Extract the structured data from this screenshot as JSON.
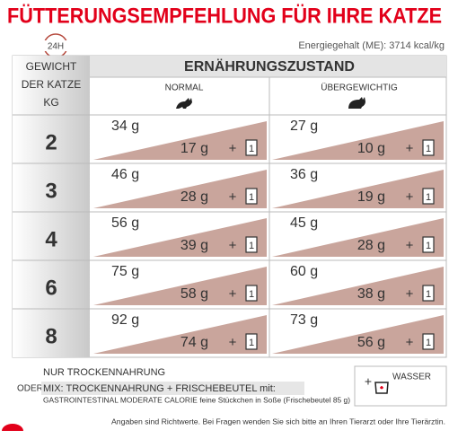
{
  "header": {
    "title": "FÜTTERUNGSEMPFEHLUNG FÜR IHRE KATZE",
    "badge": "24H",
    "energy": "Energiegehalt (ME): 3714 kcal/kg"
  },
  "table": {
    "weight_header": [
      "GEWICHT",
      "DER KATZE",
      "KG"
    ],
    "group_header": "ERNÄHRUNGSZUSTAND",
    "columns": [
      "NORMAL",
      "ÜBERGEWICHTIG"
    ],
    "plus": "+",
    "pouch": "1",
    "rows": [
      {
        "weight": 2,
        "normal": [
          "34 g",
          "17 g"
        ],
        "overweight": [
          "27 g",
          "10 g"
        ]
      },
      {
        "weight": 3,
        "normal": [
          "46 g",
          "28 g"
        ],
        "overweight": [
          "36 g",
          "19 g"
        ]
      },
      {
        "weight": 4,
        "normal": [
          "56 g",
          "39 g"
        ],
        "overweight": [
          "45 g",
          "28 g"
        ]
      },
      {
        "weight": 6,
        "normal": [
          "75 g",
          "58 g"
        ],
        "overweight": [
          "60 g",
          "38 g"
        ]
      },
      {
        "weight": 8,
        "normal": [
          "92 g",
          "74 g"
        ],
        "overweight": [
          "73 g",
          "56 g"
        ]
      }
    ]
  },
  "footer": {
    "dry_only": "NUR TROCKENNAHRUNG",
    "or": "ODER",
    "mix": "MIX: TROCKENNAHRUNG + FRISCHEBEUTEL mit:",
    "product": "GASTROINTESTINAL MODERATE CALORIE feine Stückchen in Soße (Frischebeutel 85 g)",
    "plus": "+",
    "water": "WASSER",
    "note": "Angaben sind Richtwerte. Bei Fragen wenden Sie sich bitte an Ihren Tierarzt oder Ihre Tierärztin."
  }
}
